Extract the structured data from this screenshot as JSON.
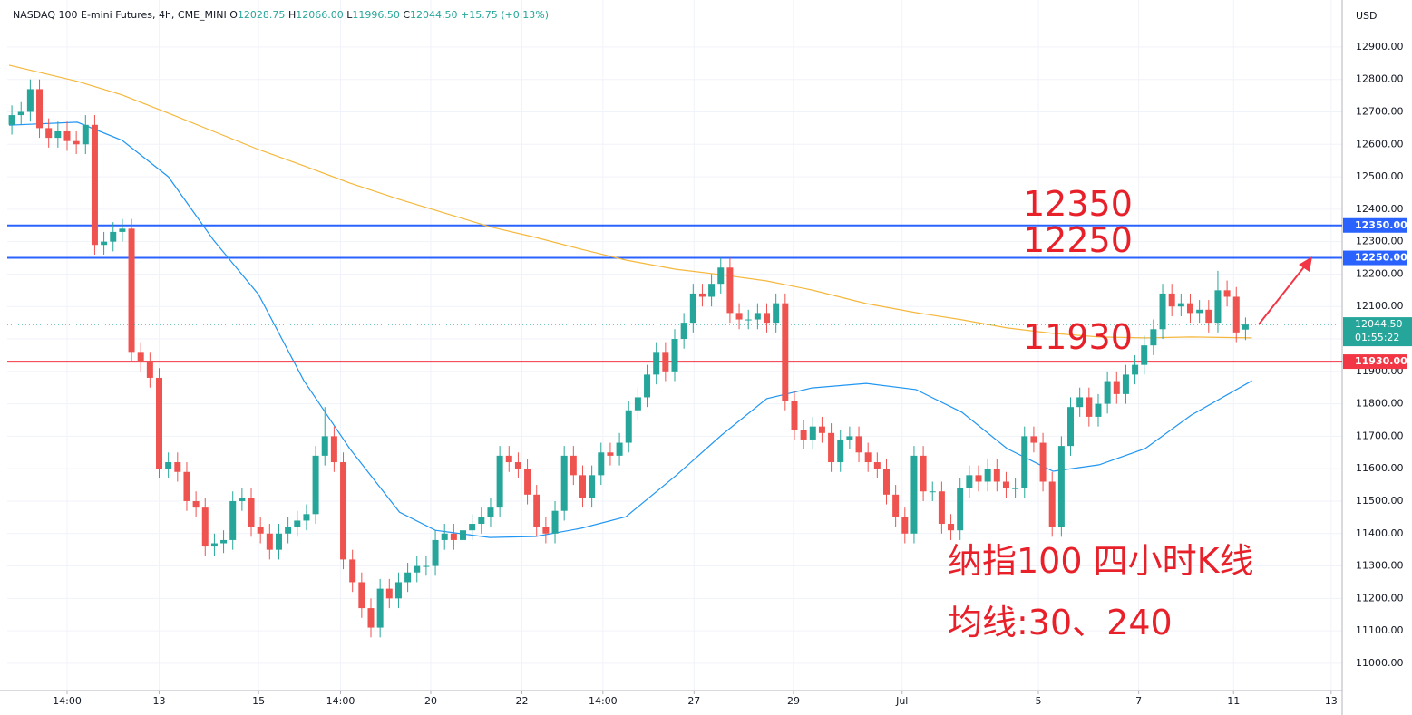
{
  "chart_data": {
    "type": "candlestick",
    "legend": {
      "symbol": "NASDAQ 100 E-mini Futures, 4h, CME_MINI",
      "fields": [
        {
          "key": "O",
          "value": "12028.75"
        },
        {
          "key": "H",
          "value": "12066.00"
        },
        {
          "key": "L",
          "value": "11996.50"
        },
        {
          "key": "C",
          "value": "12044.50"
        }
      ],
      "change": "+15.75 (+0.13%)"
    },
    "currency": "USD",
    "xlim": [
      -0.5,
      144.5
    ],
    "xticks": [
      {
        "value": 6,
        "label": "14:00"
      },
      {
        "value": 16,
        "label": "13"
      },
      {
        "value": 26.8,
        "label": "15"
      },
      {
        "value": 35.7,
        "label": "14:00"
      },
      {
        "value": 45.5,
        "label": "20"
      },
      {
        "value": 55.4,
        "label": "22"
      },
      {
        "value": 64.2,
        "label": "14:00"
      },
      {
        "value": 74.1,
        "label": "27"
      },
      {
        "value": 84.9,
        "label": "29"
      },
      {
        "value": 96.7,
        "label": "Jul"
      },
      {
        "value": 111.5,
        "label": "5"
      },
      {
        "value": 122.4,
        "label": "7"
      },
      {
        "value": 132.7,
        "label": "11"
      },
      {
        "value": 143.3,
        "label": "13"
      }
    ],
    "ylim": [
      10916,
      13045
    ],
    "yticks": [
      {
        "value": 11000,
        "label": "11000.00"
      },
      {
        "value": 11100,
        "label": "11100.00"
      },
      {
        "value": 11200,
        "label": "11200.00"
      },
      {
        "value": 11300,
        "label": "11300.00"
      },
      {
        "value": 11400,
        "label": "11400.00"
      },
      {
        "value": 11500,
        "label": "11500.00"
      },
      {
        "value": 11600,
        "label": "11600.00"
      },
      {
        "value": 11700,
        "label": "11700.00"
      },
      {
        "value": 11800,
        "label": "11800.00"
      },
      {
        "value": 11900,
        "label": "11900.00"
      },
      {
        "value": 12000,
        "label": "12000.00"
      },
      {
        "value": 12100,
        "label": "12100.00"
      },
      {
        "value": 12200,
        "label": "12200.00"
      },
      {
        "value": 12300,
        "label": "12300.00"
      },
      {
        "value": 12400,
        "label": "12400.00"
      },
      {
        "value": 12500,
        "label": "12500.00"
      },
      {
        "value": 12600,
        "label": "12600.00"
      },
      {
        "value": 12700,
        "label": "12700.00"
      },
      {
        "value": 12800,
        "label": "12800.00"
      },
      {
        "value": 12900,
        "label": "12900.00"
      }
    ],
    "grid": true,
    "up_color": "#26a69a",
    "down_color": "#ef5350",
    "open": [
      12660,
      12690,
      12700,
      12770,
      12650,
      12620,
      12640,
      12610,
      12600,
      12660,
      12290,
      12300,
      12330,
      12340,
      11960,
      11930,
      11880,
      11600,
      11620,
      11590,
      11500,
      11480,
      11360,
      11370,
      11380,
      11500,
      11510,
      11420,
      11400,
      11350,
      11400,
      11420,
      11440,
      11460,
      11640,
      11700,
      11620,
      11320,
      11250,
      11170,
      11110,
      11230,
      11200,
      11250,
      11280,
      11300,
      11300,
      11380,
      11400,
      11380,
      11410,
      11430,
      11450,
      11480,
      11640,
      11620,
      11600,
      11520,
      11420,
      11400,
      11470,
      11640,
      11580,
      11510,
      11580,
      11650,
      11640,
      11680,
      11780,
      11820,
      11890,
      11960,
      11900,
      12000,
      12050,
      12140,
      12130,
      12170,
      12220,
      12080,
      12060,
      12060,
      12080,
      12050,
      12110,
      11810,
      11720,
      11690,
      11730,
      11710,
      11620,
      11690,
      11700,
      11650,
      11620,
      11600,
      11520,
      11450,
      11400,
      11640,
      11530,
      11530,
      11430,
      11410,
      11540,
      11580,
      11560,
      11600,
      11560,
      11540,
      11540,
      11700,
      11680,
      11560,
      11420,
      11670,
      11790,
      11820,
      11760,
      11800,
      11870,
      11830,
      11890,
      11920,
      11980,
      12030,
      12140,
      12100,
      12110,
      12080,
      12090,
      12050,
      12150,
      12130,
      12028.75
    ],
    "high": [
      12720,
      12730,
      12800,
      12800,
      12680,
      12670,
      12670,
      12640,
      12690,
      12690,
      12330,
      12360,
      12370,
      12370,
      11990,
      11960,
      11910,
      11650,
      11650,
      11620,
      11530,
      11510,
      11400,
      11410,
      11530,
      11540,
      11540,
      11450,
      11430,
      11430,
      11450,
      11470,
      11490,
      11670,
      11790,
      11730,
      11650,
      11350,
      11280,
      11200,
      11260,
      11260,
      11280,
      11310,
      11330,
      11330,
      11410,
      11430,
      11430,
      11440,
      11460,
      11480,
      11510,
      11670,
      11670,
      11650,
      11630,
      11550,
      11450,
      11500,
      11670,
      11670,
      11610,
      11610,
      11680,
      11680,
      11710,
      11810,
      11850,
      11920,
      11990,
      11990,
      12030,
      12080,
      12170,
      12170,
      12200,
      12250,
      12250,
      12110,
      12090,
      12110,
      12110,
      12140,
      12140,
      11840,
      11750,
      11760,
      11760,
      11740,
      11720,
      11730,
      11730,
      11680,
      11650,
      11630,
      11550,
      11480,
      11670,
      11670,
      11560,
      11560,
      11460,
      11570,
      11610,
      11610,
      11630,
      11630,
      11590,
      11570,
      11730,
      11730,
      11710,
      11590,
      11700,
      11820,
      11850,
      11850,
      11830,
      11900,
      11900,
      11920,
      11950,
      12010,
      12060,
      12170,
      12170,
      12140,
      12140,
      12120,
      12120,
      12210,
      12180,
      12160,
      12066
    ],
    "low": [
      12630,
      12660,
      12670,
      12620,
      12590,
      12590,
      12580,
      12570,
      12570,
      12260,
      12260,
      12270,
      12300,
      11930,
      11900,
      11850,
      11570,
      11570,
      11560,
      11470,
      11450,
      11330,
      11330,
      11340,
      11350,
      11470,
      11390,
      11370,
      11320,
      11320,
      11370,
      11390,
      11410,
      11430,
      11610,
      11590,
      11290,
      11220,
      11140,
      11080,
      11080,
      11170,
      11170,
      11220,
      11250,
      11270,
      11270,
      11350,
      11350,
      11350,
      11380,
      11400,
      11420,
      11450,
      11590,
      11570,
      11490,
      11390,
      11370,
      11370,
      11440,
      11550,
      11480,
      11480,
      11550,
      11610,
      11610,
      11650,
      11750,
      11790,
      11860,
      11870,
      11870,
      11970,
      12020,
      12100,
      12100,
      12140,
      12050,
      12030,
      12030,
      12030,
      12020,
      12020,
      11780,
      11690,
      11660,
      11660,
      11680,
      11590,
      11590,
      11660,
      11620,
      11590,
      11570,
      11490,
      11420,
      11370,
      11370,
      11500,
      11500,
      11400,
      11380,
      11380,
      11510,
      11530,
      11530,
      11530,
      11510,
      11510,
      11510,
      11650,
      11530,
      11390,
      11390,
      11640,
      11760,
      11730,
      11730,
      11770,
      11800,
      11800,
      11860,
      11890,
      11950,
      12000,
      12070,
      12070,
      12050,
      12050,
      12020,
      12020,
      12100,
      11990,
      11996.5
    ],
    "close": [
      12690,
      12700,
      12770,
      12650,
      12620,
      12640,
      12610,
      12600,
      12660,
      12290,
      12300,
      12330,
      12340,
      11960,
      11930,
      11880,
      11600,
      11620,
      11590,
      11500,
      11480,
      11360,
      11370,
      11380,
      11500,
      11510,
      11420,
      11400,
      11350,
      11400,
      11420,
      11440,
      11460,
      11640,
      11700,
      11620,
      11320,
      11250,
      11170,
      11110,
      11230,
      11200,
      11250,
      11280,
      11300,
      11300,
      11380,
      11400,
      11380,
      11410,
      11430,
      11450,
      11480,
      11640,
      11620,
      11600,
      11520,
      11420,
      11400,
      11470,
      11640,
      11580,
      11510,
      11580,
      11650,
      11640,
      11680,
      11780,
      11820,
      11890,
      11960,
      11900,
      12000,
      12050,
      12140,
      12130,
      12170,
      12220,
      12080,
      12060,
      12060,
      12080,
      12050,
      12110,
      11810,
      11720,
      11690,
      11730,
      11710,
      11620,
      11690,
      11700,
      11650,
      11620,
      11600,
      11520,
      11450,
      11400,
      11640,
      11530,
      11530,
      11430,
      11410,
      11540,
      11580,
      11560,
      11600,
      11560,
      11540,
      11540,
      11700,
      11680,
      11560,
      11420,
      11670,
      11790,
      11820,
      11760,
      11800,
      11870,
      11830,
      11890,
      11920,
      11980,
      12030,
      12140,
      12100,
      12110,
      12080,
      12090,
      12050,
      12150,
      12130,
      12020,
      12044.5
    ],
    "moving_averages": [
      {
        "color": "#2196f3",
        "x": [
          -0.3,
          7.1,
          12,
          17,
          21.9,
          26.8,
          31.7,
          36.7,
          42.1,
          46,
          51.9,
          56.9,
          61.8,
          66.7,
          72.1,
          77.1,
          82,
          86.9,
          92.8,
          98.2,
          103.2,
          108.1,
          113.1,
          118.1,
          123.1,
          128.1,
          134.7
        ],
        "values": [
          12659,
          12668,
          12612,
          12500,
          12305,
          12137,
          11872,
          11662,
          11466,
          11410,
          11388,
          11391,
          11416,
          11452,
          11578,
          11704,
          11816,
          11849,
          11863,
          11844,
          11774,
          11662,
          11592,
          11612,
          11662,
          11765,
          11871
        ]
      },
      {
        "color": "#f5b83d",
        "x": [
          -0.3,
          7.1,
          12,
          17,
          21.9,
          26.8,
          31.7,
          36.7,
          42.1,
          47,
          51.9,
          56.9,
          61.8,
          66.7,
          72.1,
          77.1,
          82,
          86.9,
          92.8,
          98.2,
          103.2,
          108.1,
          113.1,
          118.1,
          123.1,
          128.1,
          134.7
        ],
        "values": [
          12844,
          12794,
          12752,
          12696,
          12640,
          12584,
          12534,
          12481,
          12430,
          12388,
          12346,
          12313,
          12277,
          12243,
          12215,
          12198,
          12179,
          12151,
          12109,
          12081,
          12059,
          12034,
          12017,
          12006,
          12003,
          12006,
          12003
        ]
      }
    ],
    "levels": [
      {
        "value": 12350,
        "label": "12350.00",
        "color": "#2962ff"
      },
      {
        "value": 12250,
        "label": "12250.00",
        "color": "#2962ff"
      },
      {
        "value": 11930,
        "label": "11930.00",
        "color": "#f23645"
      }
    ],
    "last_price": {
      "value": 12044.5,
      "label": "12044.50",
      "countdown": "01:55:22",
      "color": "#26a69a"
    },
    "annotations": [
      "12350",
      "12250",
      "11930",
      "纳指100 四小时K线",
      "均线:30、240"
    ],
    "arrow_color": "#f23645"
  }
}
